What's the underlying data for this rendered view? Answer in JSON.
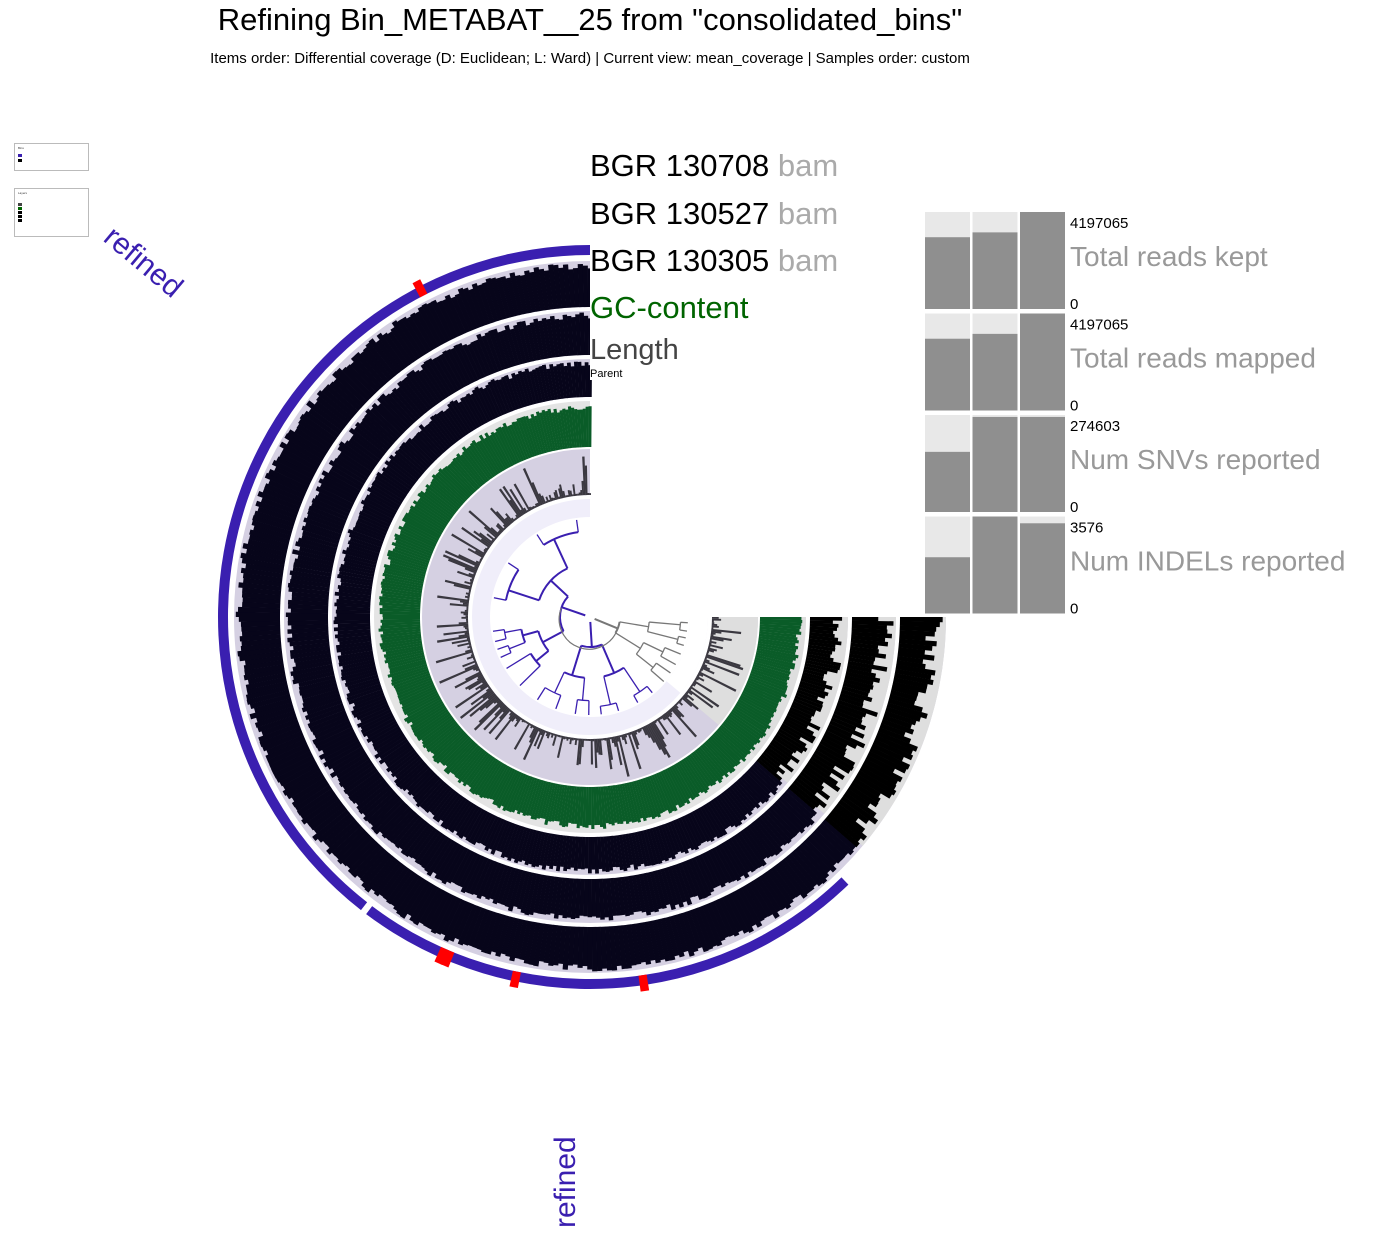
{
  "header": {
    "title": "Refining Bin_METABAT__25 from \"consolidated_bins\"",
    "subtitle": "Items order: Differential coverage (D: Euclidean; L: Ward) | Current view: mean_coverage | Samples order: custom"
  },
  "layers": [
    {
      "name": "BGR 130708",
      "suffix": "bam",
      "color": "#000000"
    },
    {
      "name": "BGR 130527",
      "suffix": "bam",
      "color": "#000000"
    },
    {
      "name": "BGR 130305",
      "suffix": "bam",
      "color": "#000000"
    },
    {
      "name": "GC-content",
      "suffix": "",
      "color": "#006400"
    },
    {
      "name": "Length",
      "suffix": "",
      "color": "#444444"
    },
    {
      "name": "Parent",
      "suffix": "",
      "color": "#000000"
    }
  ],
  "bins": [
    {
      "name": "refined",
      "color": "#3a1fb0"
    },
    {
      "name": "refined",
      "color": "#3a1fb0"
    }
  ],
  "legends": {
    "bins_title": "Bins",
    "layers_title": "Layers"
  },
  "sample_bars": [
    {
      "label": "Total reads kept",
      "max": "4197065",
      "min": "0",
      "values": [
        0.74,
        0.79,
        1.0
      ]
    },
    {
      "label": "Total reads mapped",
      "max": "4197065",
      "min": "0",
      "values": [
        0.74,
        0.79,
        1.0
      ]
    },
    {
      "label": "Num SNVs reported",
      "max": "274603",
      "min": "0",
      "values": [
        0.62,
        0.98,
        0.98
      ]
    },
    {
      "label": "Num INDELs reported",
      "max": "3576",
      "min": "0",
      "values": [
        0.58,
        1.0,
        0.93
      ]
    }
  ],
  "colors": {
    "bin": "#3a1fb0",
    "gc": "#0a5c28",
    "coverage": "#07051a",
    "marker": "#ff0000",
    "bar": "#8f8f8f"
  }
}
